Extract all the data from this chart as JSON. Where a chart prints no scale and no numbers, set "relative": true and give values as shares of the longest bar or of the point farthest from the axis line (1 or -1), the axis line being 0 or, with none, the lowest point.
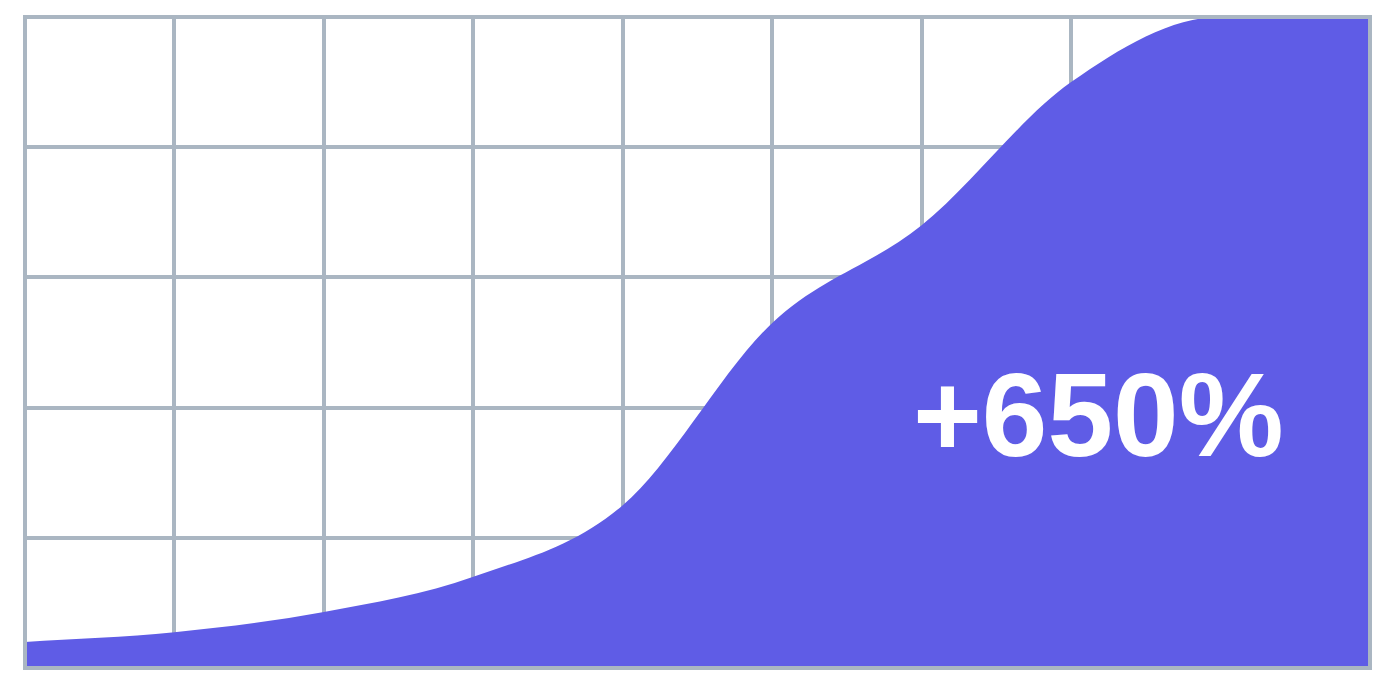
{
  "chart_data": {
    "type": "area",
    "relative": true,
    "grid": true,
    "categories": [
      null,
      null,
      null,
      null,
      null,
      null,
      null,
      null,
      null,
      null
    ],
    "series": [
      {
        "color": "#5f5ce6",
        "values": [
          0.04,
          0.055,
          0.086,
          0.14,
          0.25,
          0.53,
          0.68,
          0.9,
          1,
          1
        ]
      }
    ],
    "annotations": [
      "+650%"
    ]
  }
}
